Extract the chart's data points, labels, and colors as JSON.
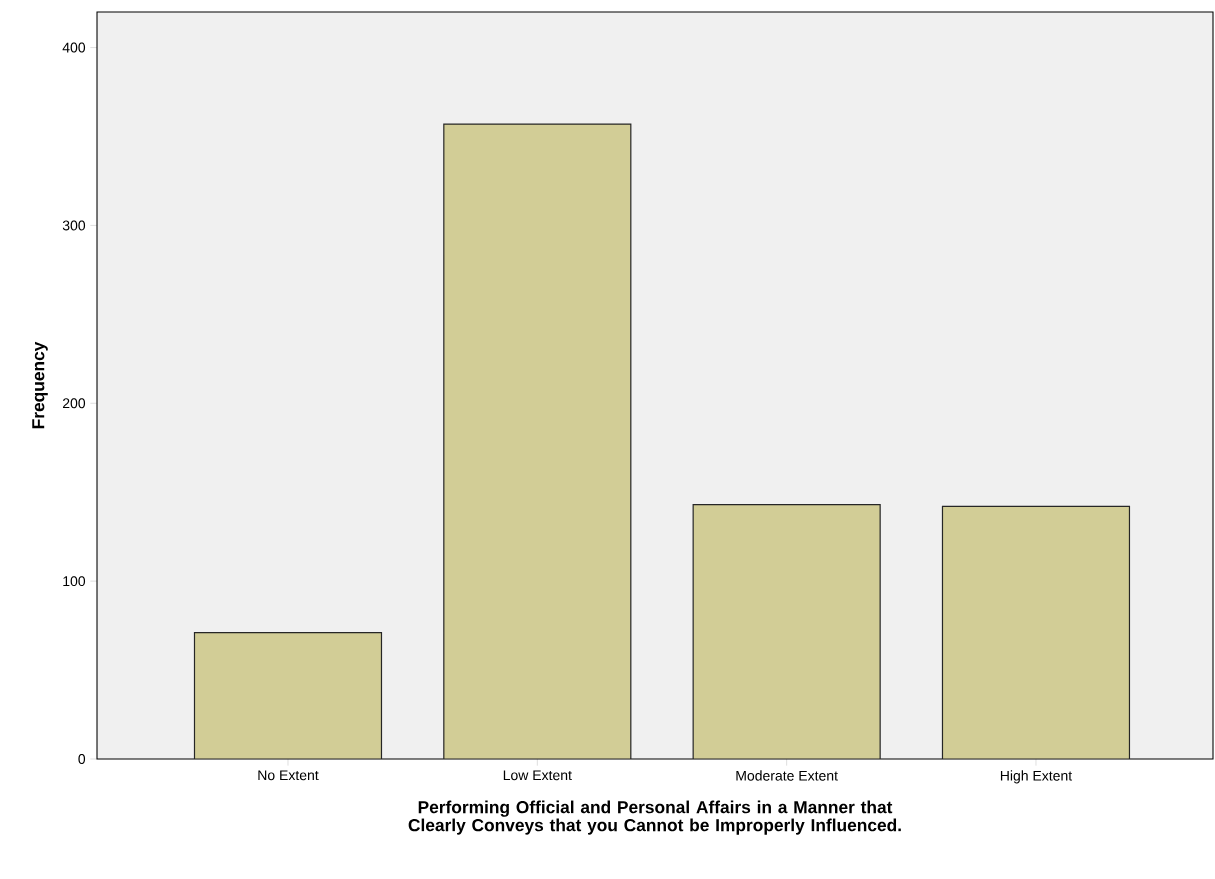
{
  "chart_data": {
    "type": "bar",
    "xlabel": "Performing Official and Personal Affairs in a Manner that Clearly Conveys that you Cannot be Improperly Influenced.",
    "ylabel": "Frequency",
    "categories": [
      "No Extent",
      "Low Extent",
      "Moderate Extent",
      "High Extent"
    ],
    "values": [
      71,
      357,
      143,
      142
    ],
    "color": "#d2cd96",
    "ylim": [
      0,
      420
    ],
    "yticks": [
      0,
      100,
      200,
      300,
      400
    ],
    "grid": false
  }
}
